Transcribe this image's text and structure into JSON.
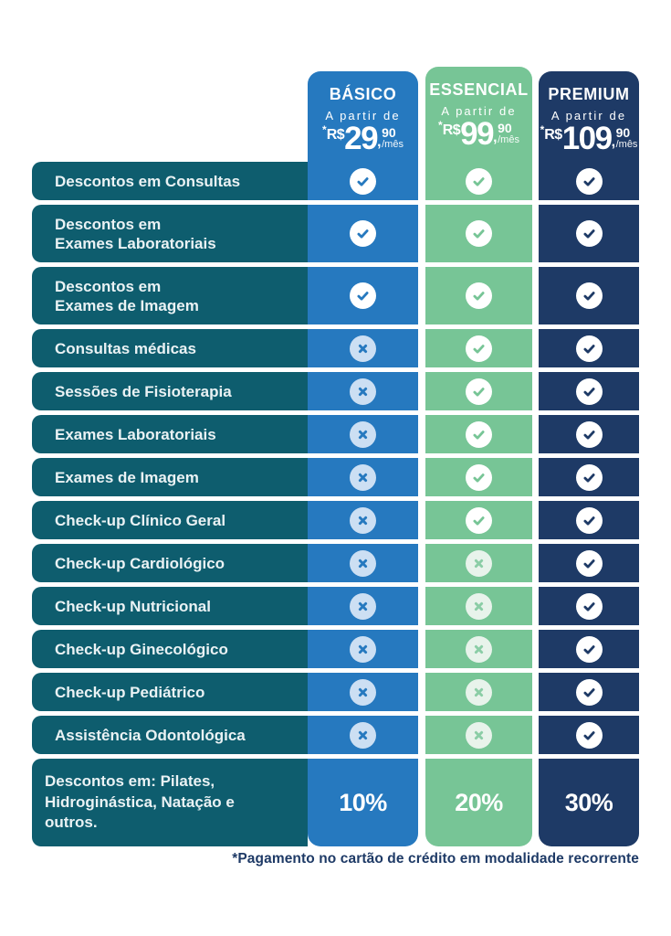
{
  "colors": {
    "teal": "#0E5D6E",
    "blue": "#2679BF",
    "green": "#77C596",
    "navy": "#1E3A66",
    "blue_cross_bg": "#CCDFF3",
    "green_cross_bg": "#E8F3EB",
    "green_cross_x": "#8BCDA6",
    "label_text": "#EAF2F4"
  },
  "icon_glyphs": {
    "check": "✓",
    "cross": "✕"
  },
  "plans": [
    {
      "name": "BÁSICO",
      "price_prefix": "A partir de",
      "price": {
        "asterisk": "*",
        "currency": "R$",
        "integer": "29",
        "comma": ",",
        "cents": "90",
        "period": "/mês"
      }
    },
    {
      "name": "ESSENCIAL",
      "price_prefix": "A partir de",
      "price": {
        "asterisk": "*",
        "currency": "R$",
        "integer": "99",
        "comma": ",",
        "cents": "90",
        "period": "/mês"
      }
    },
    {
      "name": "PREMIUM",
      "price_prefix": "A partir de",
      "price": {
        "asterisk": "*",
        "currency": "R$",
        "integer": "109",
        "comma": ",",
        "cents": "90",
        "period": "/mês"
      }
    }
  ],
  "table": {
    "rows": [
      {
        "label": [
          "Descontos em Consultas"
        ],
        "cells": [
          "check",
          "check",
          "check"
        ]
      },
      {
        "label": [
          "Descontos em",
          "Exames Laboratoriais"
        ],
        "cells": [
          "check",
          "check",
          "check"
        ]
      },
      {
        "label": [
          "Descontos em",
          "Exames de Imagem"
        ],
        "cells": [
          "check",
          "check",
          "check"
        ]
      },
      {
        "label": [
          "Consultas médicas"
        ],
        "cells": [
          "cross",
          "check",
          "check"
        ]
      },
      {
        "label": [
          "Sessões de Fisioterapia"
        ],
        "cells": [
          "cross",
          "check",
          "check"
        ]
      },
      {
        "label": [
          "Exames Laboratoriais"
        ],
        "cells": [
          "cross",
          "check",
          "check"
        ]
      },
      {
        "label": [
          "Exames de Imagem"
        ],
        "cells": [
          "cross",
          "check",
          "check"
        ]
      },
      {
        "label": [
          "Check-up Clínico Geral"
        ],
        "cells": [
          "cross",
          "check",
          "check"
        ]
      },
      {
        "label": [
          "Check-up Cardiológico"
        ],
        "cells": [
          "cross",
          "cross",
          "check"
        ]
      },
      {
        "label": [
          "Check-up Nutricional"
        ],
        "cells": [
          "cross",
          "cross",
          "check"
        ]
      },
      {
        "label": [
          "Check-up Ginecológico"
        ],
        "cells": [
          "cross",
          "cross",
          "check"
        ]
      },
      {
        "label": [
          "Check-up Pediátrico"
        ],
        "cells": [
          "cross",
          "cross",
          "check"
        ]
      },
      {
        "label": [
          "Assistência Odontológica"
        ],
        "cells": [
          "cross",
          "cross",
          "check"
        ]
      },
      {
        "label": [
          "Descontos em: Pilates,",
          "Hidroginástica, Natação e",
          "outros."
        ],
        "cells": [
          "10%",
          "20%",
          "30%"
        ]
      }
    ]
  },
  "footnote": "*Pagamento no cartão de crédito em modalidade recorrente"
}
